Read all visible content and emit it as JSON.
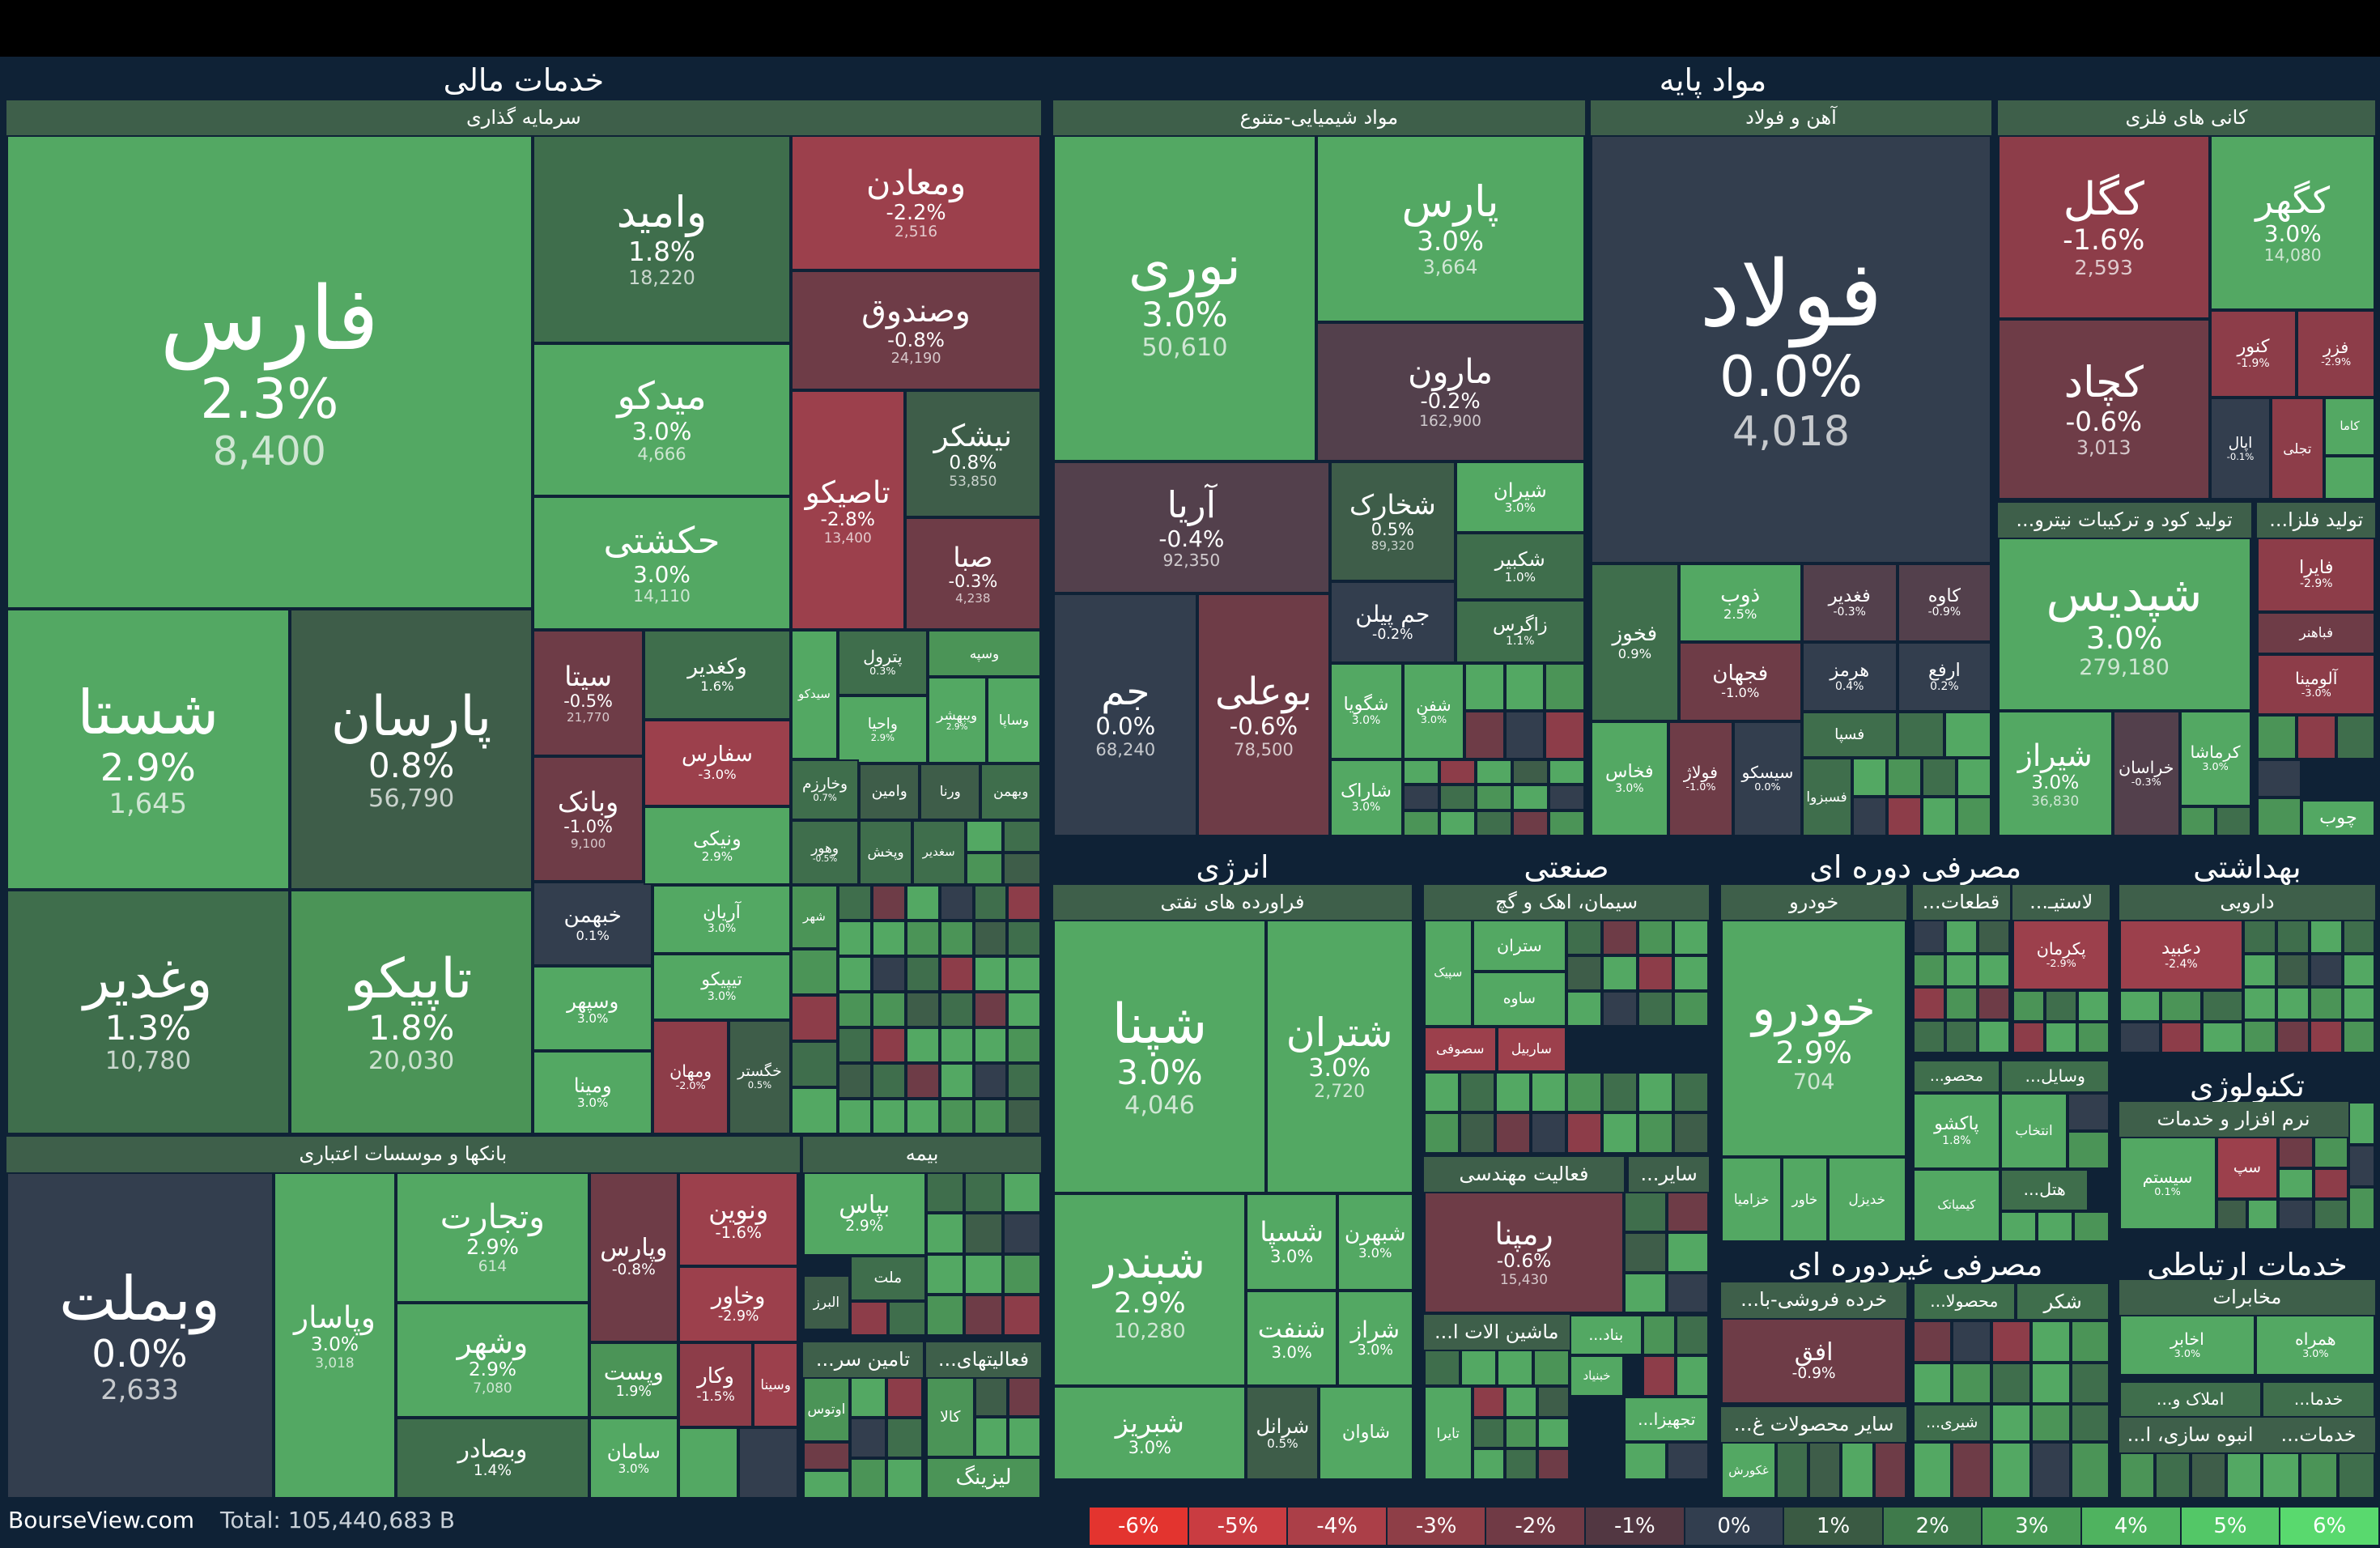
{
  "brand": "BourseView.com",
  "total": "Total: 105,440,683 B",
  "legend": [
    {
      "label": "-6%",
      "color": "#e3342f"
    },
    {
      "label": "-5%",
      "color": "#c93c41"
    },
    {
      "label": "-4%",
      "color": "#ab3f48"
    },
    {
      "label": "-3%",
      "color": "#8e3e47"
    },
    {
      "label": "-2%",
      "color": "#703a45"
    },
    {
      "label": "-1%",
      "color": "#523742"
    },
    {
      "label": "0%",
      "color": "#323e4f"
    },
    {
      "label": "1%",
      "color": "#3a5a43"
    },
    {
      "label": "2%",
      "color": "#3f7a4b"
    },
    {
      "label": "3%",
      "color": "#489a55"
    },
    {
      "label": "4%",
      "color": "#4fb35f"
    },
    {
      "label": "5%",
      "color": "#53c767"
    },
    {
      "label": "6%",
      "color": "#59d96e"
    }
  ],
  "sectors": {
    "financial": "خدمات مالی",
    "basic_materials": "مواد پایه",
    "energy": "انرژی",
    "industrial": "صنعتی",
    "consumer_cyclical": "مصرفی دوره ای",
    "healthcare": "بهداشتی",
    "technology": "تکنولوژی",
    "consumer_defensive": "مصرفی غیردوره ای",
    "communication": "خدمات ارتباطی"
  },
  "industries": {
    "investment": "سرمایه گذاری",
    "banks": "بانکها و موسسات اعتباری",
    "insurance": "بیمه",
    "chemical": "مواد شیمیایی-متنوع",
    "steel": "آهن و فولاد",
    "metal_mining": "کانی های فلزی",
    "coke": "...تولید کود و ترکیبات نیترو",
    "metal_prod": "...تولید فلزا",
    "refinery": "فراورده های نفتی",
    "cement": "سیمان، اهک و گچ",
    "engineering": "فعالیت مهندسی",
    "machinery": "...ماشین الات ا",
    "auto": "خودرو",
    "parts": "...قطعات",
    "plastic": "...لاستیـ",
    "pharma": "دارویی",
    "software": "نرم افزار و خدمات",
    "telecom": "مخابرات",
    "retail": "...خرده فروشی-با",
    "other_products": "...سایر محصولات غ",
    "social_security": "...تامین سر",
    "misc_finance": "...فعالیتهای",
    "other_small": "...سایر",
    "construction": "...انبوه سازی، ا",
    "services": "...خدمات"
  },
  "stocks": {
    "fars": {
      "name": "فارس",
      "pct": "2.3%",
      "val": "8,400"
    },
    "shasta": {
      "name": "شستا",
      "pct": "2.9%",
      "val": "1,645"
    },
    "parsan": {
      "name": "پارسان",
      "pct": "0.8%",
      "val": "56,790"
    },
    "vaghadir": {
      "name": "وغدیر",
      "pct": "1.3%",
      "val": "10,780"
    },
    "tapiko": {
      "name": "تاپیکو",
      "pct": "1.8%",
      "val": "20,030"
    },
    "vomid": {
      "name": "وامید",
      "pct": "1.8%",
      "val": "18,220"
    },
    "vamaaden": {
      "name": "ومعادن",
      "pct": "-2.2%",
      "val": "2,516"
    },
    "vasandogh": {
      "name": "وصندوق",
      "pct": "-0.8%",
      "val": "24,190"
    },
    "midko": {
      "name": "میدکو",
      "pct": "3.0%",
      "val": "4,666"
    },
    "hakeshti": {
      "name": "حکشتی",
      "pct": "3.0%",
      "val": "14,110"
    },
    "tapisko": {
      "name": "تاصیکو",
      "pct": "-2.8%",
      "val": "13,400"
    },
    "nishkar": {
      "name": "نیشکر",
      "pct": "0.8%",
      "val": "53,850"
    },
    "saba": {
      "name": "صبا",
      "pct": "-0.3%",
      "val": "4,238"
    },
    "sita": {
      "name": "سیتا",
      "pct": "-0.5%",
      "val": "21,770"
    },
    "vabank": {
      "name": "وبانک",
      "pct": "-1.0%",
      "val": "9,100"
    },
    "khebahman": {
      "name": "خبهمن",
      "pct": "0.1%"
    },
    "vasepehr": {
      "name": "وسپهر",
      "pct": "3.0%"
    },
    "vamina": {
      "name": "ومینا",
      "pct": "3.0%"
    },
    "vakghadir": {
      "name": "وکغدیر",
      "pct": "1.6%"
    },
    "safars": {
      "name": "سفارس",
      "pct": "-3.0%"
    },
    "vaniki": {
      "name": "ونیکی",
      "pct": "2.9%"
    },
    "aryan": {
      "name": "آریان",
      "pct": "3.0%"
    },
    "tipiko": {
      "name": "تیپیکو",
      "pct": "3.0%"
    },
    "vamahan": {
      "name": "ومهان",
      "pct": "-2.0%"
    },
    "khegostar": {
      "name": "خگستر",
      "pct": "0.5%"
    },
    "petrol": {
      "name": "پترول",
      "pct": "0.3%"
    },
    "vasepeh": {
      "name": "وسپه"
    },
    "sidko": {
      "name": "سیدکو"
    },
    "vaheya": {
      "name": "واحیا",
      "pct": "2.9%"
    },
    "vibeshahr": {
      "name": "ویبهشر",
      "pct": "2.9%"
    },
    "vasapa": {
      "name": "وساپا"
    },
    "vakharazm": {
      "name": "وخارزم",
      "pct": "0.7%"
    },
    "vamin": {
      "name": "وامین"
    },
    "vorna": {
      "name": "ورنا"
    },
    "vbahman": {
      "name": "وبهمن"
    },
    "vahvar": {
      "name": "وهور",
      "pct": "-0.5%"
    },
    "vapakhsh": {
      "name": "وپخش"
    },
    "seghadir": {
      "name": "سغدیر"
    },
    "shahr": {
      "name": "شهر"
    },
    "vabemellat": {
      "name": "وبملت",
      "pct": "0.0%",
      "val": "2,633"
    },
    "vapasar": {
      "name": "وپاسار",
      "pct": "3.0%",
      "val": "3,018"
    },
    "vatejarat": {
      "name": "وتجارت",
      "pct": "2.9%",
      "val": "614"
    },
    "vaparsb": {
      "name": "وپارس",
      "pct": "-0.8%"
    },
    "vanovin": {
      "name": "ونوین",
      "pct": "-1.6%"
    },
    "vakhavar": {
      "name": "وخاور",
      "pct": "-2.9%"
    },
    "vashahr": {
      "name": "وشهر",
      "pct": "2.9%",
      "val": "7,080"
    },
    "vapost": {
      "name": "وپست",
      "pct": "1.9%"
    },
    "vakar": {
      "name": "وکار",
      "pct": "-1.5%"
    },
    "vasina": {
      "name": "وسینا"
    },
    "vabsader": {
      "name": "وبصادر",
      "pct": "1.4%"
    },
    "saman": {
      "name": "سامان",
      "pct": "3.0%"
    },
    "baps": {
      "name": "بپاس",
      "pct": "2.9%"
    },
    "mellat": {
      "name": "ملت"
    },
    "alborz": {
      "name": "البرز"
    },
    "otos": {
      "name": "اوتوس"
    },
    "kala": {
      "name": "کالا"
    },
    "leasing": {
      "name": "لیزینگ"
    },
    "noori": {
      "name": "نوری",
      "pct": "3.0%",
      "val": "50,610"
    },
    "pars": {
      "name": "پارس",
      "pct": "3.0%",
      "val": "3,664"
    },
    "maroon": {
      "name": "مارون",
      "pct": "-0.2%",
      "val": "162,900"
    },
    "arya": {
      "name": "آریا",
      "pct": "-0.4%",
      "val": "92,350"
    },
    "shekhark": {
      "name": "شخارک",
      "pct": "0.5%",
      "val": "89,320"
    },
    "shiran": {
      "name": "شیران",
      "pct": "3.0%"
    },
    "shekbir": {
      "name": "شکبیر",
      "pct": "1.0%"
    },
    "jam": {
      "name": "جم",
      "pct": "0.0%",
      "val": "68,240"
    },
    "buali": {
      "name": "بوعلی",
      "pct": "-0.6%",
      "val": "78,500"
    },
    "jampilan": {
      "name": "جم پیلن",
      "pct": "-0.2%"
    },
    "zagros": {
      "name": "زاگرس",
      "pct": "1.1%"
    },
    "shegooya": {
      "name": "شگویا",
      "pct": "3.0%"
    },
    "shafan": {
      "name": "شفن",
      "pct": "3.0%"
    },
    "sharak": {
      "name": "شاراک",
      "pct": "3.0%"
    },
    "foolad": {
      "name": "فولاد",
      "pct": "0.0%",
      "val": "4,018"
    },
    "fakhooz": {
      "name": "فخوز",
      "pct": "0.9%"
    },
    "zob": {
      "name": "ذوب",
      "pct": "2.5%"
    },
    "feghadir": {
      "name": "فغدیر",
      "pct": "-0.3%"
    },
    "kaveh": {
      "name": "کاوه",
      "pct": "-0.9%"
    },
    "fajahan": {
      "name": "فجهان",
      "pct": "-1.0%"
    },
    "hormoz": {
      "name": "هرمز",
      "pct": "0.4%"
    },
    "arfa": {
      "name": "ارفع",
      "pct": "0.2%"
    },
    "fasepa": {
      "name": "فسپا"
    },
    "fakhas": {
      "name": "فخاس",
      "pct": "3.0%"
    },
    "foolaj": {
      "name": "فولاژ",
      "pct": "-1.0%"
    },
    "sisko": {
      "name": "سیسکو",
      "pct": "0.0%"
    },
    "fesoza": {
      "name": "فسبزوا"
    },
    "kegol": {
      "name": "کگل",
      "pct": "-1.6%",
      "val": "2,593"
    },
    "kegohar": {
      "name": "کگهر",
      "pct": "3.0%",
      "val": "14,080"
    },
    "kechad": {
      "name": "کچاد",
      "pct": "-0.6%",
      "val": "3,013"
    },
    "kenor": {
      "name": "کنور",
      "pct": "-1.9%"
    },
    "fazar": {
      "name": "فزر",
      "pct": "-2.9%"
    },
    "apal": {
      "name": "اپال",
      "pct": "-0.1%"
    },
    "tajli": {
      "name": "تجلی"
    },
    "kama": {
      "name": "کاما"
    },
    "shepdis": {
      "name": "شپدیس",
      "pct": "3.0%",
      "val": "279,180"
    },
    "shiraz": {
      "name": "شیراز",
      "pct": "3.0%",
      "val": "36,830"
    },
    "khorasan": {
      "name": "خراسان",
      "pct": "-0.3%"
    },
    "kermasha": {
      "name": "کرماشا",
      "pct": "3.0%"
    },
    "faira": {
      "name": "فایرا",
      "pct": "-2.9%"
    },
    "fabahonar": {
      "name": "فباهنر"
    },
    "alumina": {
      "name": "آلومینا",
      "pct": "-3.0%"
    },
    "choob": {
      "name": "چوب"
    },
    "shepna": {
      "name": "شپنا",
      "pct": "3.0%",
      "val": "4,046"
    },
    "shetran": {
      "name": "شتران",
      "pct": "3.0%",
      "val": "2,720"
    },
    "shebandar": {
      "name": "شبندر",
      "pct": "2.9%",
      "val": "10,280"
    },
    "shesepa": {
      "name": "شسپا",
      "pct": "3.0%"
    },
    "shebahan": {
      "name": "شبهرن",
      "pct": "3.0%"
    },
    "sheneft": {
      "name": "شنفت",
      "pct": "3.0%"
    },
    "sheraz": {
      "name": "شراز",
      "pct": "3.0%"
    },
    "shebriz": {
      "name": "شبریز",
      "pct": "3.0%"
    },
    "sheranol": {
      "name": "شرانل",
      "pct": "0.5%"
    },
    "shavan": {
      "name": "شاوان"
    },
    "setran": {
      "name": "ستران"
    },
    "sapik": {
      "name": "سپیک"
    },
    "saveh": {
      "name": "ساوه"
    },
    "sasoofi": {
      "name": "سصوفی"
    },
    "saraqil": {
      "name": "ساربیل"
    },
    "ramapna": {
      "name": "رمپنا",
      "pct": "-0.6%",
      "val": "15,430"
    },
    "khodro": {
      "name": "خودرو",
      "pct": "2.9%",
      "val": "704"
    },
    "khazamia": {
      "name": "خزامیا"
    },
    "khavar": {
      "name": "خاور"
    },
    "khadizel": {
      "name": "خدیزل"
    },
    "pakerman": {
      "name": "پکرمان",
      "pct": "-2.9%"
    },
    "paksho": {
      "name": "پاکشو",
      "pct": "1.8%"
    },
    "entekhab": {
      "name": "انتخاب"
    },
    "kimiatek": {
      "name": "کیمیاتک"
    },
    "mahsoo": {
      "name": "...محصو"
    },
    "vasayel": {
      "name": "...وسایل"
    },
    "hotel": {
      "name": "...هتل"
    },
    "dabid": {
      "name": "دعبید",
      "pct": "-2.4%"
    },
    "sistem": {
      "name": "سیستم",
      "pct": "0.1%"
    },
    "sep": {
      "name": "سپ"
    },
    "akhaber": {
      "name": "اخابر",
      "pct": "3.0%"
    },
    "hamrah": {
      "name": "همراه",
      "pct": "3.0%"
    },
    "ofogh": {
      "name": "افق",
      "pct": "-0.9%"
    },
    "mahsoola": {
      "name": "...محصولا"
    },
    "shekar": {
      "name": "شکر"
    },
    "ghoorosh": {
      "name": "غکورش"
    },
    "shirazi": {
      "name": "...شیری"
    },
    "bena": {
      "name": "...بناد"
    },
    "khabniad": {
      "name": "خبنیاد"
    },
    "tajhiza": {
      "name": "...تجهیزا"
    },
    "tayera": {
      "name": "تایرا"
    },
    "amlak": {
      "name": "...املاک و"
    },
    "khadama": {
      "name": "...خدما"
    }
  }
}
